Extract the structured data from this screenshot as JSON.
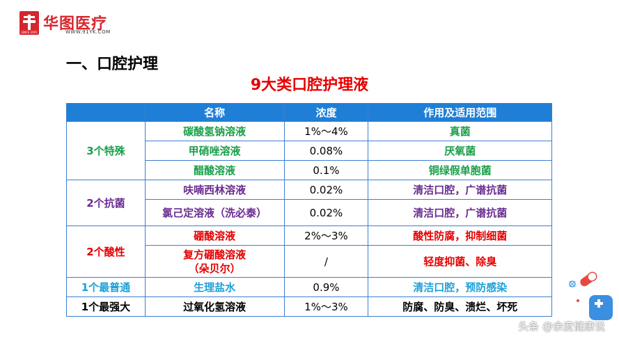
{
  "brand": {
    "name": "华图医疗",
    "url": "WWW.91YK.COM",
    "since": "SINCE 2001"
  },
  "section_title": "一、口腔护理",
  "main_title": "9大类口腔护理液",
  "table": {
    "headers": [
      "",
      "名称",
      "浓度",
      "作用及适用范围"
    ],
    "groups": [
      {
        "category": "3个特殊",
        "color": "#1aa04a",
        "rows": [
          {
            "name": "碳酸氢钠溶液",
            "concentration": "1%～4%",
            "usage": "真菌"
          },
          {
            "name": "甲硝唑溶液",
            "concentration": "0.08%",
            "usage": "厌氧菌"
          },
          {
            "name": "醋酸溶液",
            "concentration": "0.1%",
            "usage": "铜绿假单胞菌"
          }
        ]
      },
      {
        "category": "2个抗菌",
        "color": "#6a2c91",
        "rows": [
          {
            "name": "呋喃西林溶液",
            "concentration": "0.02%",
            "usage": "清洁口腔，广谱抗菌"
          },
          {
            "name": "氯己定溶液（洗必泰）",
            "concentration": "0.02%",
            "usage": "清洁口腔，广谱抗菌"
          }
        ]
      },
      {
        "category": "2个酸性",
        "color": "#e60000",
        "rows": [
          {
            "name": "硼酸溶液",
            "concentration": "2%～3%",
            "usage": "酸性防腐，抑制细菌"
          },
          {
            "name_line1": "复方硼酸溶液",
            "name_line2": "（朵贝尔）",
            "concentration": "/",
            "usage": "轻度抑菌、除臭"
          }
        ]
      },
      {
        "category": "1个最普通",
        "color": "#1ca0d8",
        "rows": [
          {
            "name": "生理盐水",
            "concentration": "0.9%",
            "usage": "清洁口腔，预防感染"
          }
        ]
      },
      {
        "category": "1个最强大",
        "color": "#000000",
        "rows": [
          {
            "name": "过氧化氢溶液",
            "concentration": "1%～3%",
            "usage": "防腐、防臭、溃烂、坏死"
          }
        ]
      }
    ]
  },
  "watermark": "头条 @余度健康说",
  "colors": {
    "header_bg": "#1f7fd6",
    "border": "#3b7fd0",
    "title_red": "#e60000",
    "brand_red": "#d6262c"
  }
}
